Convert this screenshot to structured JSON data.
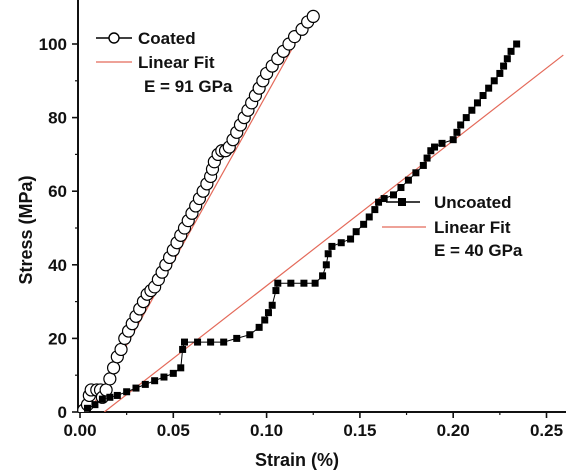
{
  "chart_data": {
    "type": "scatter",
    "title": "",
    "xlabel": "Strain (%)",
    "ylabel": "Stress (MPa)",
    "xlim": [
      0,
      0.27
    ],
    "ylim": [
      0,
      108
    ],
    "x_ticks": [
      "0.00",
      "0.05",
      "0.10",
      "0.15",
      "0.20",
      "0.25"
    ],
    "y_ticks": [
      "0",
      "20",
      "40",
      "60",
      "80",
      "100"
    ],
    "legend_position": "top-left and middle-right",
    "series": [
      {
        "name": "Coated",
        "marker": "open-circle",
        "color": "#000000",
        "points": [
          [
            0.002,
            0.5
          ],
          [
            0.004,
            2
          ],
          [
            0.005,
            4.5
          ],
          [
            0.006,
            6
          ],
          [
            0.009,
            6
          ],
          [
            0.011,
            6
          ],
          [
            0.012,
            4
          ],
          [
            0.014,
            6
          ],
          [
            0.016,
            9
          ],
          [
            0.018,
            12
          ],
          [
            0.02,
            15
          ],
          [
            0.022,
            17
          ],
          [
            0.024,
            20
          ],
          [
            0.026,
            22
          ],
          [
            0.028,
            24
          ],
          [
            0.03,
            26
          ],
          [
            0.032,
            28
          ],
          [
            0.034,
            30
          ],
          [
            0.036,
            32
          ],
          [
            0.038,
            33
          ],
          [
            0.04,
            34
          ],
          [
            0.042,
            36
          ],
          [
            0.044,
            38
          ],
          [
            0.046,
            40
          ],
          [
            0.048,
            42
          ],
          [
            0.05,
            44
          ],
          [
            0.052,
            46
          ],
          [
            0.054,
            48
          ],
          [
            0.056,
            50
          ],
          [
            0.058,
            52
          ],
          [
            0.06,
            54
          ],
          [
            0.062,
            56
          ],
          [
            0.064,
            58
          ],
          [
            0.066,
            60
          ],
          [
            0.068,
            62
          ],
          [
            0.07,
            64
          ],
          [
            0.071,
            66
          ],
          [
            0.072,
            68
          ],
          [
            0.074,
            70
          ],
          [
            0.076,
            71
          ],
          [
            0.078,
            71
          ],
          [
            0.08,
            72
          ],
          [
            0.082,
            74
          ],
          [
            0.084,
            76
          ],
          [
            0.086,
            78
          ],
          [
            0.088,
            80
          ],
          [
            0.09,
            82
          ],
          [
            0.092,
            84
          ],
          [
            0.094,
            86
          ],
          [
            0.096,
            88
          ],
          [
            0.098,
            90
          ],
          [
            0.1,
            92
          ],
          [
            0.103,
            94
          ],
          [
            0.106,
            96
          ],
          [
            0.109,
            98
          ],
          [
            0.112,
            100
          ],
          [
            0.115,
            102
          ],
          [
            0.119,
            104
          ],
          [
            0.122,
            106
          ],
          [
            0.125,
            107.5
          ]
        ]
      },
      {
        "name": "Uncoated",
        "marker": "filled-square",
        "color": "#000000",
        "points": [
          [
            0.004,
            1
          ],
          [
            0.008,
            2
          ],
          [
            0.012,
            3.5
          ],
          [
            0.016,
            4
          ],
          [
            0.02,
            4.5
          ],
          [
            0.025,
            5.5
          ],
          [
            0.03,
            6.5
          ],
          [
            0.035,
            7.5
          ],
          [
            0.04,
            8.5
          ],
          [
            0.045,
            9.5
          ],
          [
            0.05,
            10.5
          ],
          [
            0.054,
            12
          ],
          [
            0.055,
            17
          ],
          [
            0.056,
            19
          ],
          [
            0.063,
            19
          ],
          [
            0.07,
            19
          ],
          [
            0.077,
            19
          ],
          [
            0.084,
            20
          ],
          [
            0.091,
            21
          ],
          [
            0.096,
            23
          ],
          [
            0.099,
            25
          ],
          [
            0.101,
            27
          ],
          [
            0.103,
            29
          ],
          [
            0.105,
            33
          ],
          [
            0.106,
            35
          ],
          [
            0.113,
            35
          ],
          [
            0.12,
            35
          ],
          [
            0.126,
            35
          ],
          [
            0.13,
            37
          ],
          [
            0.132,
            40
          ],
          [
            0.133,
            43
          ],
          [
            0.135,
            45
          ],
          [
            0.14,
            46
          ],
          [
            0.145,
            47
          ],
          [
            0.148,
            49
          ],
          [
            0.152,
            51
          ],
          [
            0.155,
            53
          ],
          [
            0.158,
            55
          ],
          [
            0.16,
            57
          ],
          [
            0.163,
            58
          ],
          [
            0.168,
            59
          ],
          [
            0.172,
            61
          ],
          [
            0.176,
            63
          ],
          [
            0.18,
            65
          ],
          [
            0.184,
            67
          ],
          [
            0.186,
            69
          ],
          [
            0.188,
            71
          ],
          [
            0.19,
            72
          ],
          [
            0.194,
            73
          ],
          [
            0.2,
            74
          ],
          [
            0.202,
            76
          ],
          [
            0.204,
            78
          ],
          [
            0.207,
            80
          ],
          [
            0.21,
            82
          ],
          [
            0.213,
            84
          ],
          [
            0.216,
            86
          ],
          [
            0.219,
            88
          ],
          [
            0.222,
            90
          ],
          [
            0.225,
            92
          ],
          [
            0.227,
            94
          ],
          [
            0.229,
            96
          ],
          [
            0.231,
            98
          ],
          [
            0.234,
            100
          ]
        ]
      }
    ],
    "fits": [
      {
        "name": "Linear Fit",
        "label": "E = 91 GPa",
        "color": "#e46a5a",
        "x": [
          0.005,
          0.125
        ],
        "y": [
          0,
          109
        ]
      },
      {
        "name": "Linear Fit",
        "label": "E = 40 GPa",
        "color": "#e46a5a",
        "x": [
          0.013,
          0.259
        ],
        "y": [
          0,
          97
        ]
      }
    ]
  }
}
